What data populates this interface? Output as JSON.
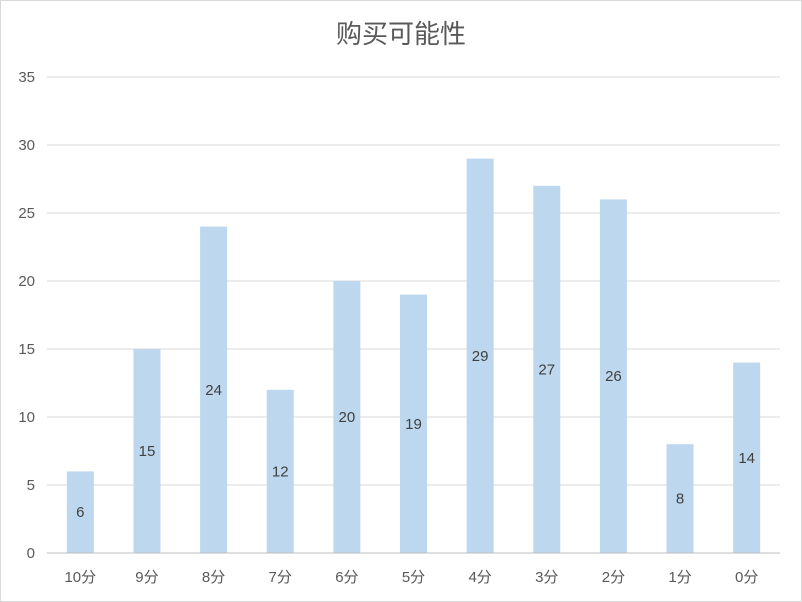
{
  "chart_data": {
    "type": "bar",
    "title": "购买可能性",
    "xlabel": "",
    "ylabel": "",
    "categories": [
      "10分",
      "9分",
      "8分",
      "7分",
      "6分",
      "5分",
      "4分",
      "3分",
      "2分",
      "1分",
      "0分"
    ],
    "values": [
      6,
      15,
      24,
      12,
      20,
      19,
      29,
      27,
      26,
      8,
      14
    ],
    "ylim": [
      0,
      35
    ],
    "yticks": [
      0,
      5,
      10,
      15,
      20,
      25,
      30,
      35
    ],
    "grid": true,
    "legend": "none",
    "data_labels": true,
    "bar_color": "#bdd7ee"
  }
}
